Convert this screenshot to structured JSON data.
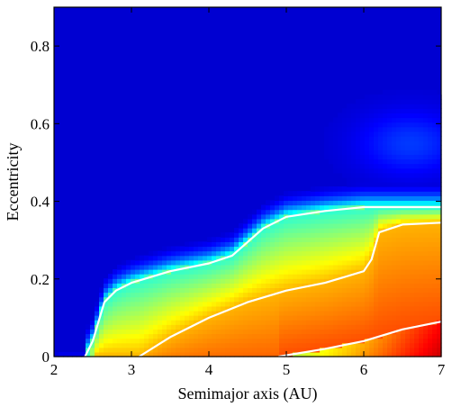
{
  "chart_data": {
    "type": "heatmap",
    "title": "",
    "xlabel": "Semimajor axis (AU)",
    "ylabel": "Eccentricity",
    "xlim": [
      2,
      7
    ],
    "ylim": [
      0,
      0.9
    ],
    "x_ticks": [
      2,
      3,
      4,
      5,
      6,
      7
    ],
    "x_tick_labels": [
      "2",
      "3",
      "4",
      "5",
      "6",
      "7"
    ],
    "y_ticks": [
      0,
      0.2,
      0.4,
      0.6,
      0.8
    ],
    "y_tick_labels": [
      "0",
      "0.2",
      "0.4",
      "0.6",
      "0.8"
    ],
    "colormap": "jet",
    "grid": false,
    "contour_color": "#ffffff",
    "contours": [
      {
        "points": [
          [
            2.4,
            0.0
          ],
          [
            2.5,
            0.04
          ],
          [
            2.65,
            0.14
          ],
          [
            2.8,
            0.17
          ],
          [
            3.0,
            0.19
          ],
          [
            3.5,
            0.22
          ],
          [
            4.0,
            0.24
          ],
          [
            4.3,
            0.26
          ],
          [
            4.7,
            0.33
          ],
          [
            5.0,
            0.36
          ],
          [
            5.5,
            0.375
          ],
          [
            6.0,
            0.385
          ],
          [
            7.0,
            0.385
          ]
        ]
      },
      {
        "points": [
          [
            3.1,
            0.0
          ],
          [
            3.5,
            0.05
          ],
          [
            4.0,
            0.1
          ],
          [
            4.5,
            0.14
          ],
          [
            5.0,
            0.17
          ],
          [
            5.5,
            0.19
          ],
          [
            6.0,
            0.22
          ],
          [
            6.1,
            0.25
          ],
          [
            6.2,
            0.32
          ],
          [
            6.5,
            0.34
          ],
          [
            7.0,
            0.345
          ]
        ]
      },
      {
        "points": [
          [
            4.9,
            0.0
          ],
          [
            5.5,
            0.02
          ],
          [
            6.0,
            0.04
          ],
          [
            6.5,
            0.07
          ],
          [
            7.0,
            0.09
          ]
        ]
      }
    ]
  }
}
